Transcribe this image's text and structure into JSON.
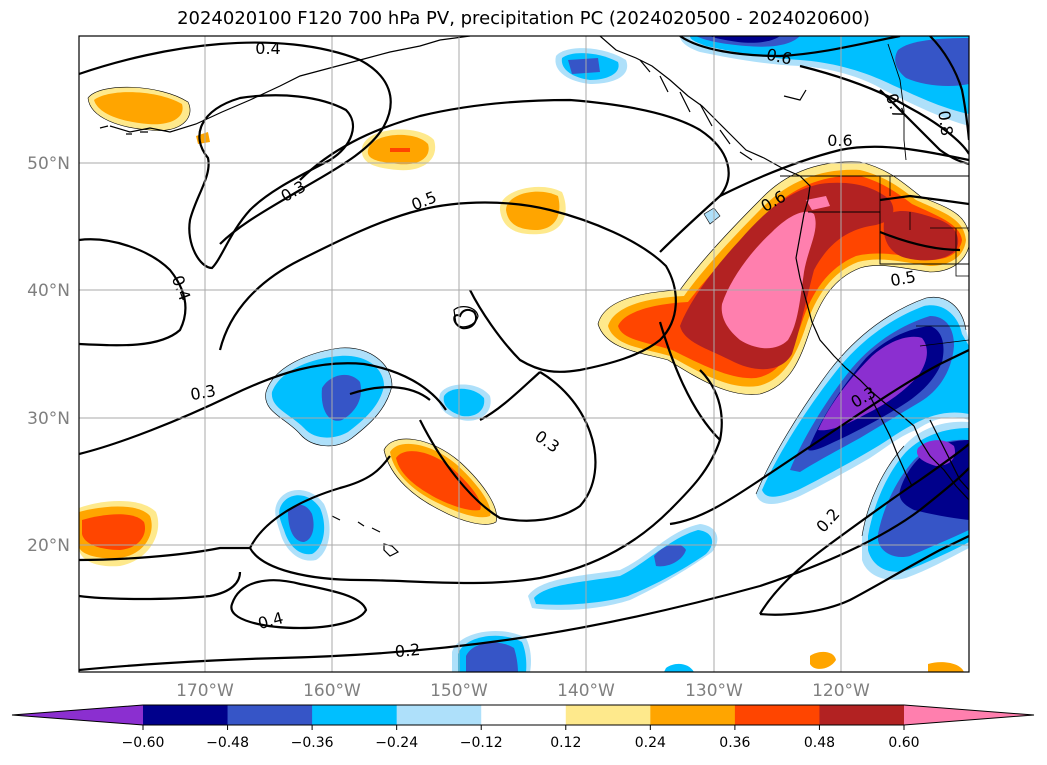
{
  "title": "2024020100 F120 700 hPa PV, precipitation PC (2024020500 - 2024020600)",
  "lat_labels": [
    "50°N",
    "40°N",
    "30°N",
    "20°N"
  ],
  "lon_labels": [
    "170°W",
    "160°W",
    "150°W",
    "140°W",
    "130°W",
    "120°W"
  ],
  "contour_labels": [
    "0.4",
    "0.6",
    "0.7",
    "0.8",
    "0.3",
    "0.5",
    "0.6",
    "0.6",
    "0.4",
    "0.3",
    "0.3",
    "0.5",
    "0.3",
    "0.2",
    "0.4",
    "0.2"
  ],
  "colorbar": {
    "ticks": [
      "−0.60",
      "−0.48",
      "−0.36",
      "−0.24",
      "−0.12",
      "0.12",
      "0.24",
      "0.36",
      "0.48",
      "0.60"
    ],
    "colors": [
      "#8b2fd0",
      "#00008b",
      "#3655c7",
      "#00bfff",
      "#aee0fa",
      "#ffffff",
      "#fee98c",
      "#ffa500",
      "#ff4500",
      "#b22222",
      "#ff7fae",
      "#ff7fae"
    ]
  }
}
